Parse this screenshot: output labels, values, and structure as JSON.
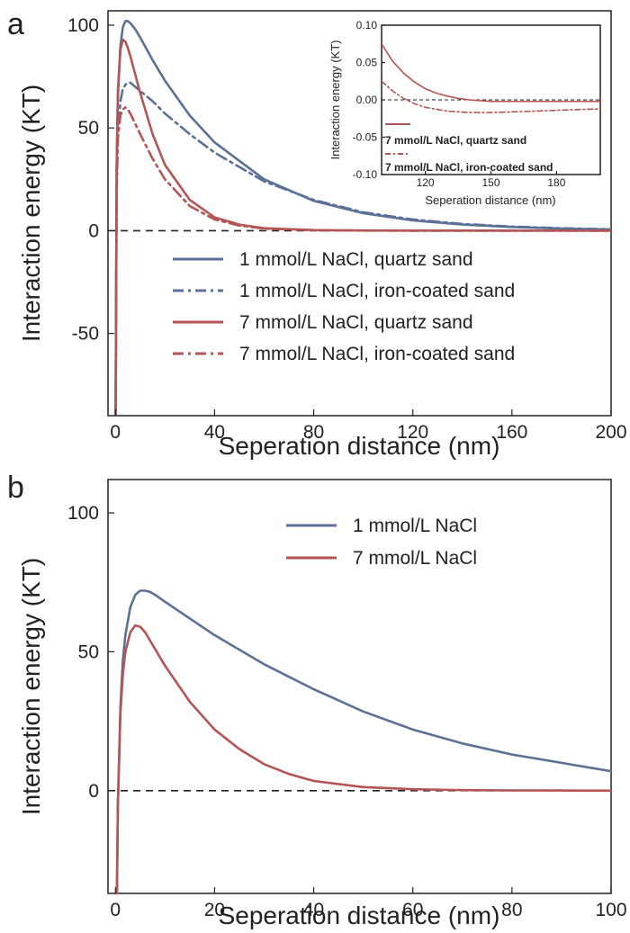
{
  "colors": {
    "blue": "#5b7096",
    "red": "#b45454",
    "axis": "#222222",
    "zero": "#222222"
  },
  "chart_data": [
    {
      "panel": "a",
      "type": "line",
      "xlabel": "Seperation distance (nm)",
      "ylabel": "Interaction energy (KT)",
      "xlim": [
        -3,
        200
      ],
      "ylim": [
        -90,
        107
      ],
      "xticks": [
        "0",
        "40",
        "80",
        "120",
        "160",
        "200"
      ],
      "yticks": [
        "-50",
        "0",
        "50",
        "100"
      ],
      "zero_line": true,
      "legend_position": "center-right",
      "series": [
        {
          "name": "1 mmol/L NaCl, quartz sand",
          "color": "#5b7096",
          "style": "solid",
          "x": [
            0.1,
            0.5,
            1,
            2,
            3,
            4,
            5,
            6,
            8,
            10,
            15,
            20,
            30,
            40,
            60,
            80,
            100,
            120,
            140,
            160,
            180,
            200
          ],
          "y": [
            -90,
            30,
            65,
            90,
            99,
            102,
            102,
            101,
            98,
            94,
            83,
            73,
            56,
            43,
            25,
            14.5,
            8.5,
            5,
            3,
            1.8,
            1,
            0.6
          ]
        },
        {
          "name": "1 mmol/L NaCl, iron-coated sand",
          "color": "#5b7096",
          "style": "dashdot",
          "x": [
            0.1,
            0.5,
            1,
            2,
            3,
            4,
            5,
            6,
            8,
            10,
            15,
            20,
            30,
            40,
            60,
            80,
            100,
            120,
            140,
            160,
            180,
            200
          ],
          "y": [
            -90,
            20,
            45,
            63,
            69,
            71,
            72,
            72,
            70,
            68,
            63,
            57,
            47,
            38,
            24,
            15,
            9,
            5.5,
            3.3,
            2,
            1.2,
            0.7
          ]
        },
        {
          "name": "7 mmol/L NaCl, quartz sand",
          "color": "#b45454",
          "style": "solid",
          "x": [
            0.1,
            0.5,
            1,
            2,
            3,
            4,
            5,
            6,
            8,
            10,
            15,
            20,
            30,
            40,
            50,
            60,
            80,
            100,
            120,
            200
          ],
          "y": [
            -90,
            30,
            68,
            88,
            93,
            92,
            89,
            85,
            76,
            67,
            47,
            32,
            15,
            6.5,
            3,
            1.2,
            0.3,
            0.1,
            0.05,
            0
          ]
        },
        {
          "name": "7 mmol/L NaCl, iron-coated sand",
          "color": "#b45454",
          "style": "dashdot",
          "x": [
            0.1,
            0.5,
            1,
            2,
            3,
            4,
            5,
            6,
            8,
            10,
            15,
            20,
            30,
            40,
            50,
            60,
            80,
            100,
            120,
            200
          ],
          "y": [
            -90,
            20,
            45,
            56,
            59,
            60,
            59,
            57,
            52,
            47,
            35,
            25,
            12,
            5.5,
            2.5,
            1,
            0.2,
            0.05,
            0,
            -0.02
          ]
        }
      ],
      "inset": {
        "type": "line",
        "xlabel": "Seperation distance (nm)",
        "ylabel": "Interaction energy (KT)",
        "xlim": [
          100,
          200
        ],
        "ylim": [
          -0.1,
          0.1
        ],
        "xticks": [
          "120",
          "150",
          "180"
        ],
        "yticks": [
          "0.10",
          "0.05",
          "0.00",
          "-0.05",
          "-0.10"
        ],
        "zero_line": true,
        "series": [
          {
            "name": "7 mmol/L NaCl, quartz sand",
            "color": "#b45454",
            "style": "solid",
            "x": [
              100,
              105,
              110,
              115,
              120,
              125,
              130,
              135,
              140,
              150,
              160,
              170,
              180,
              190,
              200
            ],
            "y": [
              0.075,
              0.052,
              0.036,
              0.024,
              0.015,
              0.009,
              0.005,
              0.002,
              0.0,
              -0.002,
              -0.002,
              -0.002,
              -0.002,
              -0.002,
              -0.002
            ]
          },
          {
            "name": "7 mmol/L NaCl, iron-coated sand",
            "color": "#b45454",
            "style": "dashdot",
            "x": [
              100,
              105,
              110,
              115,
              120,
              130,
              140,
              150,
              160,
              170,
              180,
              190,
              200
            ],
            "y": [
              0.025,
              0.012,
              0.002,
              -0.005,
              -0.01,
              -0.015,
              -0.017,
              -0.017,
              -0.016,
              -0.015,
              -0.014,
              -0.013,
              -0.012
            ]
          }
        ]
      }
    },
    {
      "panel": "b",
      "type": "line",
      "xlabel": "Seperation distance (nm)",
      "ylabel": "Interaction energy (KT)",
      "xlim": [
        -1.5,
        100
      ],
      "ylim": [
        -37,
        112
      ],
      "xticks": [
        "0",
        "20",
        "40",
        "60",
        "80",
        "100"
      ],
      "yticks": [
        "0",
        "50",
        "100"
      ],
      "zero_line": true,
      "legend_position": "top-right",
      "series": [
        {
          "name": "1 mmol/L NaCl",
          "color": "#5b7096",
          "style": "solid",
          "x": [
            0.3,
            0.5,
            1,
            1.5,
            2,
            3,
            4,
            5,
            6,
            7,
            8,
            10,
            15,
            20,
            30,
            40,
            50,
            60,
            70,
            80,
            90,
            100
          ],
          "y": [
            -37,
            -5,
            30,
            47,
            56,
            66,
            70.5,
            72,
            72,
            71.5,
            70.5,
            68,
            62,
            56,
            45.5,
            36.5,
            28.5,
            22,
            17,
            13,
            10,
            7
          ]
        },
        {
          "name": "7 mmol/L NaCl",
          "color": "#b45454",
          "style": "solid",
          "x": [
            0.3,
            0.5,
            1,
            1.5,
            2,
            3,
            4,
            5,
            6,
            7,
            8,
            10,
            15,
            20,
            25,
            30,
            35,
            40,
            50,
            60,
            70,
            80,
            90,
            100
          ],
          "y": [
            -37,
            -5,
            28,
            42,
            50,
            57,
            59.5,
            59,
            57,
            54,
            51,
            45,
            32,
            22,
            15,
            9.5,
            6,
            3.5,
            1.3,
            0.5,
            0.2,
            0.1,
            0.05,
            0
          ]
        }
      ]
    }
  ]
}
